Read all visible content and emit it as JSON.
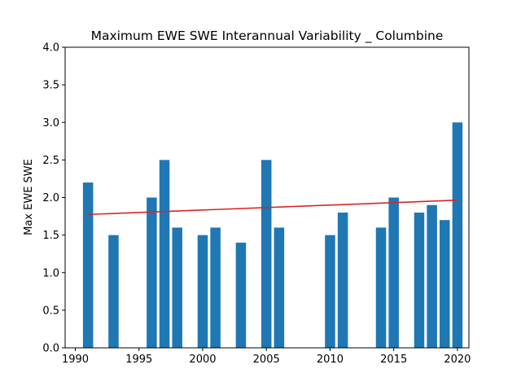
{
  "chart_data": {
    "type": "bar",
    "title": "Maximum EWE SWE Interannual Variability _ Columbine",
    "xlabel": "",
    "ylabel": "Max EWE SWE",
    "xlim": [
      1989.2,
      2020.9
    ],
    "ylim": [
      0,
      4.0
    ],
    "x_ticks": [
      1990,
      1995,
      2000,
      2005,
      2010,
      2015,
      2020
    ],
    "y_ticks": [
      0.0,
      0.5,
      1.0,
      1.5,
      2.0,
      2.5,
      3.0,
      3.5,
      4.0
    ],
    "x_tick_labels": [
      "1990",
      "1995",
      "2000",
      "2005",
      "2010",
      "2015",
      "2020"
    ],
    "y_tick_labels": [
      "0.0",
      "0.5",
      "1.0",
      "1.5",
      "2.0",
      "2.5",
      "3.0",
      "3.5",
      "4.0"
    ],
    "bar_width_years": 0.8,
    "bar_color": "#1f77b4",
    "trend_color": "#d62728",
    "grid": false,
    "bars": [
      {
        "x": 1991,
        "y": 2.2
      },
      {
        "x": 1993,
        "y": 1.5
      },
      {
        "x": 1996,
        "y": 2.0
      },
      {
        "x": 1997,
        "y": 2.5
      },
      {
        "x": 1998,
        "y": 1.6
      },
      {
        "x": 2000,
        "y": 1.5
      },
      {
        "x": 2001,
        "y": 1.6
      },
      {
        "x": 2003,
        "y": 1.4
      },
      {
        "x": 2005,
        "y": 2.5
      },
      {
        "x": 2006,
        "y": 1.6
      },
      {
        "x": 2010,
        "y": 1.5
      },
      {
        "x": 2011,
        "y": 1.8
      },
      {
        "x": 2014,
        "y": 1.6
      },
      {
        "x": 2015,
        "y": 2.0
      },
      {
        "x": 2017,
        "y": 1.8
      },
      {
        "x": 2018,
        "y": 1.9
      },
      {
        "x": 2019,
        "y": 1.7
      },
      {
        "x": 2020,
        "y": 3.0
      }
    ],
    "trend_line": {
      "x": [
        1991,
        2020
      ],
      "y": [
        1.775,
        1.965
      ]
    }
  }
}
